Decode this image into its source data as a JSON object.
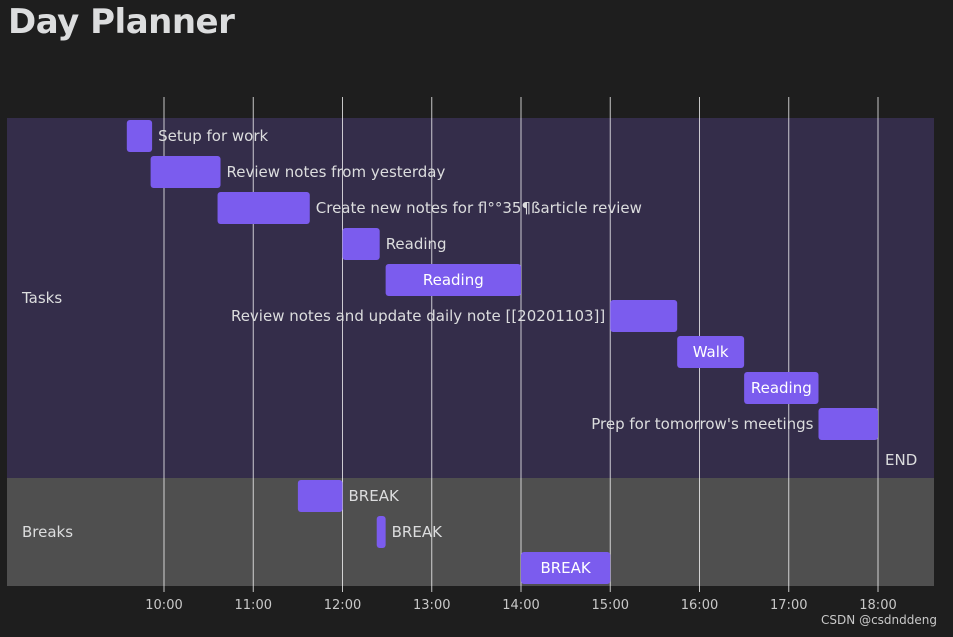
{
  "page": {
    "title": "Day Planner"
  },
  "watermark": "CSDN @csdnddeng",
  "colors": {
    "task_bg": "#342d4a",
    "breaks_bg": "#4f4f4f",
    "bar": "#7b5cee",
    "grid": "#ffffff"
  },
  "chart_data": {
    "type": "gantt",
    "title": "Day Planner",
    "x_axis": {
      "min": "09:00",
      "max": "18:40",
      "ticks": [
        "10:00",
        "11:00",
        "12:00",
        "13:00",
        "14:00",
        "15:00",
        "16:00",
        "17:00",
        "18:00"
      ]
    },
    "sections": [
      {
        "name": "Tasks",
        "rows": [
          {
            "label": "Setup for work",
            "start": "09:35",
            "end": "09:52",
            "label_pos": "right"
          },
          {
            "label": "Review notes from yesterday",
            "start": "09:51",
            "end": "10:38",
            "label_pos": "right"
          },
          {
            "label": "Create new notes for fl°°35¶ßarticle review",
            "start": "10:36",
            "end": "11:38",
            "label_pos": "right"
          },
          {
            "label": "Reading",
            "start": "12:00",
            "end": "12:25",
            "label_pos": "right"
          },
          {
            "label": "Reading",
            "start": "12:29",
            "end": "14:00",
            "label_pos": "inside"
          },
          {
            "label": "Review notes and update daily note [[20201103]]",
            "start": "15:00",
            "end": "15:45",
            "label_pos": "left"
          },
          {
            "label": "Walk",
            "start": "15:45",
            "end": "16:30",
            "label_pos": "inside"
          },
          {
            "label": "Reading",
            "start": "16:30",
            "end": "17:20",
            "label_pos": "inside"
          },
          {
            "label": "Prep for tomorrow's meetings",
            "start": "17:20",
            "end": "18:00",
            "label_pos": "left"
          },
          {
            "label": "END",
            "start": "18:00",
            "end": "18:00",
            "label_pos": "right",
            "milestone": true
          }
        ]
      },
      {
        "name": "Breaks",
        "rows": [
          {
            "label": "BREAK",
            "start": "11:30",
            "end": "12:00",
            "label_pos": "right"
          },
          {
            "label": "BREAK",
            "start": "12:23",
            "end": "12:29",
            "label_pos": "right"
          },
          {
            "label": "BREAK",
            "start": "14:00",
            "end": "15:00",
            "label_pos": "inside"
          }
        ]
      }
    ]
  }
}
